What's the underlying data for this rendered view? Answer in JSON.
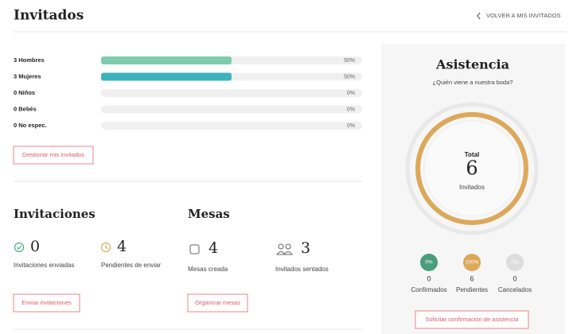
{
  "header": {
    "title": "Invitados",
    "back_link": "VOLVER A MIS INVITADOS"
  },
  "guests": {
    "rows": [
      {
        "label": "3 Hombres",
        "percent": 50,
        "percent_label": "50%",
        "color": "#7ecbae"
      },
      {
        "label": "3 Mujeres",
        "percent": 50,
        "percent_label": "50%",
        "color": "#3bb3bd"
      },
      {
        "label": "0 Niños",
        "percent": 0,
        "percent_label": "0%",
        "color": "#3bb3bd"
      },
      {
        "label": "0 Bebés",
        "percent": 0,
        "percent_label": "0%",
        "color": "#3bb3bd"
      },
      {
        "label": "0 No espec.",
        "percent": 0,
        "percent_label": "0%",
        "color": "#3bb3bd"
      }
    ],
    "button": "Gestionar mis invitados"
  },
  "invitaciones": {
    "title": "Invitaciones",
    "stats": [
      {
        "value": 0,
        "label": "Invitaciones enviadas"
      },
      {
        "value": 4,
        "label": "Pendientes de enviar"
      }
    ],
    "button": "Enviar invitaciones"
  },
  "mesas": {
    "title": "Mesas",
    "stats": [
      {
        "value": 4,
        "label": "Mesas creada"
      },
      {
        "value": 3,
        "label": "Invitados sentados"
      }
    ],
    "button": "Organizar mesas"
  },
  "asistencia": {
    "title": "Asistencia",
    "subtitle": "¿Quién viene a nuestra boda?",
    "total_label": "Total",
    "total": 6,
    "total_caption": "Invitados",
    "statuses": [
      {
        "percent": 0,
        "percent_label": "0%",
        "count": 0,
        "label": "Confirmados",
        "color": "#4a9d7c"
      },
      {
        "percent": 100,
        "percent_label": "100%",
        "count": 6,
        "label": "Pendientes",
        "color": "#dca95b"
      },
      {
        "percent": 0,
        "percent_label": "0%",
        "count": 0,
        "label": "Cancelados",
        "color": "#dddddd"
      }
    ],
    "button": "Solicitar confirmación de asistencia"
  }
}
